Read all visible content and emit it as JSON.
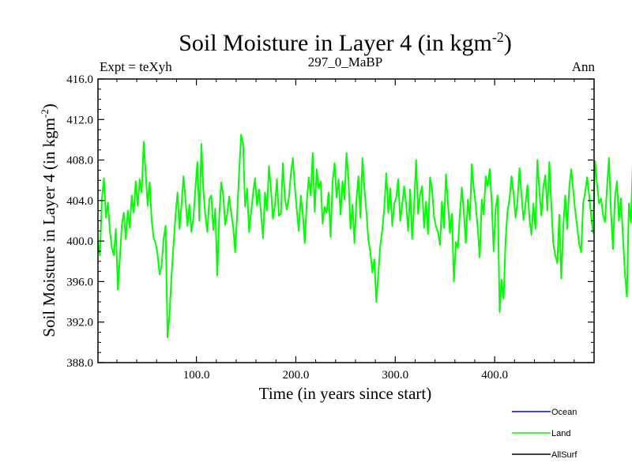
{
  "chart_data": {
    "type": "line",
    "title": "Soil Moisture in Layer 4 (in kgm",
    "title_sup": "-2",
    "title_close": ")",
    "subtitle_left": "Expt = teXyh",
    "subtitle_center": "297_0_MaBP",
    "subtitle_right": "Ann",
    "xlabel": "Time (in years since start)",
    "ylabel": "Soil Moisture in Layer 4 (in kgm",
    "ylabel_sup": "-2",
    "ylabel_close": ")",
    "xlim": [
      1,
      500
    ],
    "ylim": [
      388,
      416
    ],
    "x_ticks": [
      100,
      200,
      300,
      400
    ],
    "x_tick_labels": [
      "100.0",
      "200.0",
      "300.0",
      "400.0"
    ],
    "y_ticks": [
      388,
      392,
      396,
      400,
      404,
      408,
      412,
      416
    ],
    "y_tick_labels": [
      "388.0",
      "392.0",
      "396.0",
      "400.0",
      "404.0",
      "408.0",
      "412.0",
      "416.0"
    ],
    "grid": false,
    "legend_position": "bottom-right",
    "legend": [
      {
        "name": "Ocean",
        "color": "#0000ff"
      },
      {
        "name": "Land",
        "color": "#00ff00"
      },
      {
        "name": "AllSurf",
        "color": "#000000"
      }
    ],
    "series": [
      {
        "name": "Land",
        "color": "#00ff00",
        "x_start": 1,
        "x_step": 2,
        "values": [
          400.0,
          398.6,
          404.2,
          406.2,
          402.3,
          403.8,
          401.0,
          399.3,
          398.6,
          401.2,
          395.2,
          398.2,
          401.6,
          402.8,
          400.2,
          403.0,
          401.3,
          404.5,
          402.8,
          405.9,
          403.5,
          406.1,
          404.8,
          409.8,
          406.7,
          403.5,
          405.8,
          402.1,
          400.3,
          399.8,
          398.6,
          396.7,
          397.6,
          400.2,
          401.5,
          390.5,
          392.8,
          396.6,
          399.6,
          402.5,
          404.8,
          401.2,
          403.5,
          406.4,
          404.2,
          401.5,
          403.6,
          400.9,
          402.3,
          405.2,
          407.8,
          402.0,
          409.6,
          405.1,
          402.5,
          400.9,
          404.1,
          404.5,
          401.1,
          403.2,
          396.6,
          402.5,
          405.8,
          404.5,
          401.6,
          402.7,
          404.4,
          402.8,
          401.4,
          398.9,
          402.6,
          406.8,
          410.5,
          409.6,
          403.4,
          405.2,
          400.9,
          402.8,
          404.7,
          406.2,
          403.5,
          405.1,
          402.7,
          400.3,
          404.8,
          403.0,
          407.4,
          405.1,
          402.2,
          403.6,
          406.1,
          402.5,
          402.7,
          407.7,
          404.2,
          403.1,
          404.3,
          406.6,
          408.2,
          405.4,
          403.0,
          401.0,
          404.5,
          402.7,
          399.8,
          403.8,
          406.3,
          404.5,
          408.7,
          402.9,
          407.1,
          405.2,
          405.9,
          401.7,
          403.4,
          402.8,
          404.8,
          400.4,
          405.9,
          407.7,
          404.3,
          406.1,
          402.6,
          405.9,
          404.1,
          408.7,
          406.1,
          401.2,
          403.6,
          399.8,
          404.1,
          406.4,
          402.3,
          408.2,
          405.2,
          402.9,
          400.1,
          398.9,
          396.9,
          398.2,
          394.0,
          396.8,
          399.6,
          401.1,
          403.3,
          406.7,
          402.8,
          405.2,
          401.5,
          403.7,
          404.3,
          406.1,
          402.0,
          403.6,
          405.4,
          403.6,
          401.0,
          405.1,
          400.2,
          403.5,
          408.0,
          402.7,
          404.6,
          405.4,
          401.3,
          403.9,
          400.7,
          406.3,
          405.2,
          402.4,
          401.4,
          400.9,
          399.6,
          403.9,
          401.3,
          406.6,
          403.8,
          400.8,
          402.7,
          396.0,
          399.9,
          399.3,
          402.7,
          405.3,
          402.8,
          399.8,
          404.1,
          402.1,
          407.6,
          405.2,
          403.5,
          401.2,
          398.4,
          404.1,
          402.6,
          406.4,
          405.4,
          407.1,
          403.9,
          399.0,
          403.3,
          404.5,
          393.0,
          396.2,
          394.3,
          400.1,
          403.0,
          404.2,
          406.4,
          404.7,
          402.3,
          404.0,
          407.2,
          404.5,
          402.1,
          403.6,
          405.5,
          402.2,
          400.6,
          403.7,
          401.2,
          408.0,
          404.9,
          402.5,
          405.4,
          406.5,
          403.0,
          407.8,
          403.5,
          399.7,
          398.6,
          397.8,
          402.6,
          396.3,
          401.5,
          404.5,
          401.2,
          405.3,
          407.1,
          405.0,
          403.0,
          401.4,
          399.7,
          398.9,
          403.7,
          404.8,
          406.3,
          404.6,
          402.5,
          400.8,
          407.9,
          405.6,
          403.7,
          404.2,
          402.6,
          401.9,
          405.3,
          408.2,
          402.9,
          399.2,
          404.3,
          405.9,
          402.0,
          404.2,
          400.5,
          396.9,
          394.5,
          403.7,
          401.8,
          407.8,
          405.4,
          404.7,
          406.9,
          408.7,
          406.8,
          402.9,
          405.0,
          407.5,
          403.8,
          406.1,
          404.5,
          402.0,
          403.3,
          405.1,
          406.6,
          404.0,
          400.6,
          405.7,
          402.4,
          399.8,
          397.1,
          393.3,
          396.1,
          399.2,
          398.6,
          402.9,
          405.1,
          403.4,
          406.4,
          404.8,
          402.5,
          404.1,
          400.7,
          400.2,
          398.6,
          399.7,
          403.9,
          407.1,
          405.5,
          402.7,
          400.8,
          408.0,
          406.3,
          410.0,
          404.6,
          407.8,
          405.6,
          402.9,
          408.6,
          406.3,
          403.7,
          408.1,
          404.0,
          405.3,
          406.8,
          402.9,
          404.4,
          408.0,
          405.7,
          402.9,
          403.8,
          406.5,
          404.6,
          409.7,
          404.2,
          408.0,
          406.6,
          408.8,
          413.6,
          407.6,
          410.5,
          406.9,
          402.7,
          404.3,
          407.1,
          402.2,
          404.0,
          406.4,
          402.1,
          405.1,
          409.3,
          405.5,
          402.7,
          407.9,
          401.3,
          406.9,
          402.5,
          403.6,
          405.8,
          402.6,
          404.0,
          406.8,
          403.7,
          401.9,
          405.2,
          402.2,
          406.1,
          407.5,
          403.8,
          406.3,
          405.2,
          404.6,
          406.7,
          405.0,
          409.3
        ]
      }
    ]
  }
}
